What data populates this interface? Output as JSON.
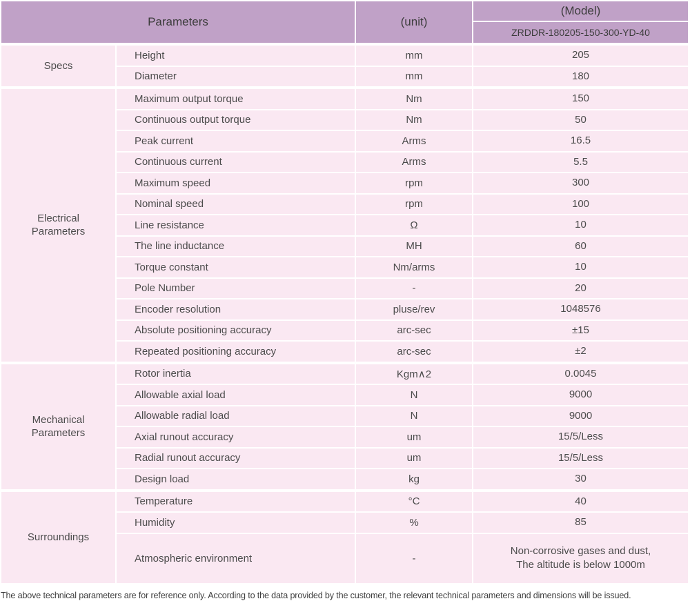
{
  "header": {
    "parameters_label": "Parameters",
    "unit_label": "(unit)",
    "model_label": "(Model)",
    "model_value": "ZRDDR-180205-150-300-YD-40"
  },
  "groups": [
    {
      "name": "Specs",
      "rows": [
        {
          "param": "Height",
          "unit": "mm",
          "value": "205"
        },
        {
          "param": "Diameter",
          "unit": "mm",
          "value": "180"
        }
      ]
    },
    {
      "name": "Electrical\nParameters",
      "rows": [
        {
          "param": "Maximum output torque",
          "unit": "Nm",
          "value": "150"
        },
        {
          "param": "Continuous output torque",
          "unit": "Nm",
          "value": "50"
        },
        {
          "param": "Peak current",
          "unit": "Arms",
          "value": "16.5"
        },
        {
          "param": "Continuous current",
          "unit": "Arms",
          "value": "5.5"
        },
        {
          "param": "Maximum speed",
          "unit": "rpm",
          "value": "300"
        },
        {
          "param": "Nominal speed",
          "unit": "rpm",
          "value": "100"
        },
        {
          "param": "Line resistance",
          "unit": "Ω",
          "value": "10"
        },
        {
          "param": "The line inductance",
          "unit": "MH",
          "value": "60"
        },
        {
          "param": "Torque constant",
          "unit": "Nm/arms",
          "value": "10"
        },
        {
          "param": "Pole Number",
          "unit": "-",
          "value": "20"
        },
        {
          "param": "Encoder resolution",
          "unit": "pluse/rev",
          "value": "1048576"
        },
        {
          "param": "Absolute positioning accuracy",
          "unit": "arc-sec",
          "value": "±15"
        },
        {
          "param": "Repeated positioning accuracy",
          "unit": "arc-sec",
          "value": "±2"
        }
      ]
    },
    {
      "name": "Mechanical\nParameters",
      "rows": [
        {
          "param": "Rotor inertia",
          "unit": "Kgm∧2",
          "value": "0.0045"
        },
        {
          "param": "Allowable axial load",
          "unit": "N",
          "value": "9000"
        },
        {
          "param": "Allowable radial load",
          "unit": "N",
          "value": "9000"
        },
        {
          "param": "Axial runout accuracy",
          "unit": "um",
          "value": "15/5/Less"
        },
        {
          "param": "Radial runout accuracy",
          "unit": "um",
          "value": "15/5/Less"
        },
        {
          "param": "Design load",
          "unit": "kg",
          "value": "30"
        }
      ]
    },
    {
      "name": "Surroundings",
      "rows": [
        {
          "param": "Temperature",
          "unit": "°C",
          "value": "40"
        },
        {
          "param": "Humidity",
          "unit": "%",
          "value": "85"
        },
        {
          "param": "Atmospheric environment",
          "unit": "-",
          "value": "Non-corrosive gases and dust,\nThe altitude is below 1000m"
        }
      ]
    }
  ],
  "footer": {
    "note": "The above technical parameters are for reference only. According to the data provided by the customer, the relevant technical parameters and dimensions will be issued."
  },
  "colors": {
    "header_bg": "#c0a1c7",
    "row_bg": "#fae8f2",
    "separator": "#ffffff",
    "text": "#4c4c4c"
  }
}
